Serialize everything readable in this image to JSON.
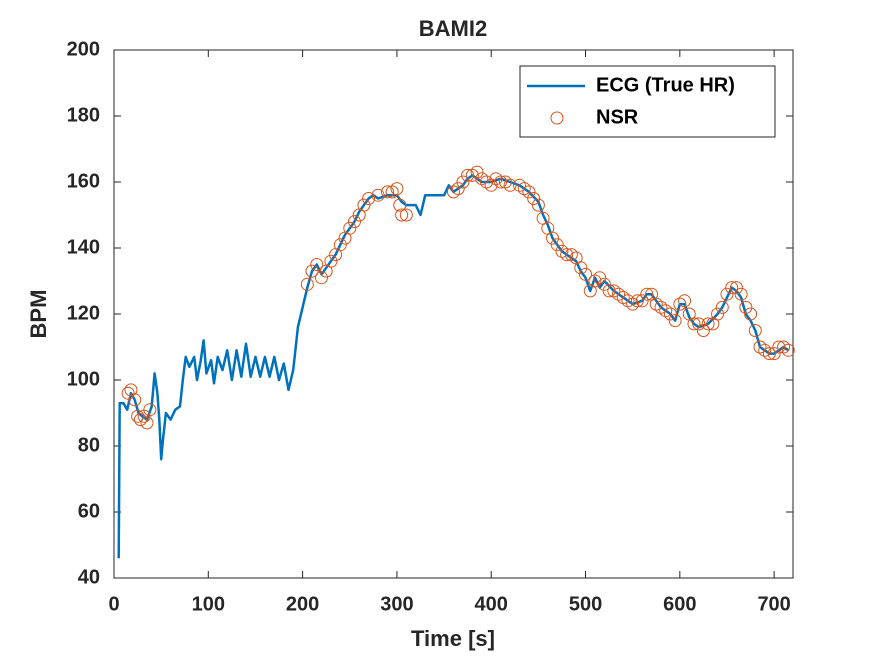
{
  "chart_data": {
    "type": "line",
    "title": "BAMI2",
    "xlabel": "Time [s]",
    "ylabel": "BPM",
    "xlim": [
      0,
      720
    ],
    "ylim": [
      40,
      200
    ],
    "xticks": [
      0,
      100,
      200,
      300,
      400,
      500,
      600,
      700
    ],
    "yticks": [
      40,
      60,
      80,
      100,
      120,
      140,
      160,
      180,
      200
    ],
    "grid": false,
    "legend_location": "northeast",
    "series": [
      {
        "name": "ECG (True HR)",
        "color": "#0072bd",
        "style": "line",
        "x": [
          5,
          6,
          10,
          14,
          18,
          22,
          26,
          30,
          35,
          40,
          43,
          46,
          48,
          50,
          52,
          55,
          60,
          65,
          70,
          73,
          76,
          80,
          85,
          88,
          92,
          95,
          98,
          103,
          106,
          110,
          115,
          120,
          125,
          130,
          135,
          140,
          145,
          150,
          155,
          160,
          165,
          170,
          175,
          180,
          185,
          190,
          195,
          200,
          205,
          210,
          215,
          220,
          225,
          230,
          235,
          240,
          245,
          250,
          255,
          260,
          265,
          270,
          275,
          280,
          290,
          300,
          305,
          310,
          320,
          325,
          330,
          340,
          350,
          355,
          360,
          370,
          375,
          380,
          385,
          390,
          400,
          410,
          420,
          430,
          440,
          450,
          455,
          460,
          465,
          470,
          475,
          480,
          490,
          495,
          500,
          505,
          510,
          515,
          520,
          530,
          540,
          550,
          560,
          565,
          570,
          580,
          590,
          595,
          600,
          605,
          610,
          615,
          620,
          630,
          640,
          645,
          650,
          655,
          660,
          665,
          670,
          675,
          680,
          685,
          690,
          695,
          700,
          705,
          710,
          715
        ],
        "values": [
          46,
          93,
          93,
          91,
          96,
          94,
          90,
          89,
          88,
          92,
          102,
          96,
          88,
          76,
          82,
          90,
          88,
          91,
          92,
          100,
          107,
          104,
          107,
          100,
          106,
          112,
          102,
          106,
          99,
          107,
          103,
          109,
          100,
          109,
          101,
          111,
          101,
          107,
          101,
          107,
          101,
          107,
          100,
          105,
          97,
          103,
          116,
          122,
          128,
          133,
          135,
          132,
          134,
          136,
          138,
          141,
          144,
          146,
          148,
          151,
          153,
          155,
          156,
          155,
          156,
          156,
          154,
          153,
          153,
          150,
          156,
          156,
          156,
          159,
          157,
          159,
          161,
          162,
          161,
          160,
          160,
          161,
          160,
          159,
          157,
          154,
          150,
          147,
          143,
          141,
          139,
          138,
          136,
          133,
          131,
          127,
          131,
          128,
          130,
          127,
          125,
          123,
          124,
          126,
          126,
          122,
          120,
          118,
          123,
          123,
          119,
          117,
          116,
          117,
          120,
          122,
          125,
          128,
          127,
          125,
          120,
          118,
          115,
          110,
          109,
          108,
          108,
          109,
          110,
          109
        ]
      },
      {
        "name": "NSR",
        "color": "#d95319",
        "style": "marker",
        "x": [
          15,
          18,
          22,
          25,
          28,
          32,
          35,
          38,
          205,
          210,
          215,
          220,
          225,
          230,
          235,
          240,
          245,
          250,
          255,
          260,
          265,
          270,
          280,
          290,
          295,
          300,
          303,
          305,
          310,
          360,
          365,
          370,
          375,
          380,
          385,
          390,
          395,
          400,
          405,
          410,
          415,
          420,
          430,
          435,
          440,
          445,
          450,
          455,
          460,
          465,
          470,
          475,
          480,
          485,
          490,
          495,
          500,
          505,
          510,
          515,
          520,
          525,
          530,
          535,
          540,
          545,
          550,
          555,
          560,
          565,
          570,
          575,
          580,
          585,
          590,
          595,
          600,
          605,
          610,
          615,
          620,
          625,
          630,
          635,
          640,
          645,
          650,
          655,
          660,
          665,
          670,
          675,
          680,
          685,
          690,
          695,
          700,
          705,
          710,
          715
        ],
        "values": [
          96,
          97,
          94,
          89,
          88,
          89,
          87,
          91,
          129,
          133,
          135,
          131,
          133,
          136,
          138,
          141,
          143,
          146,
          148,
          150,
          153,
          155,
          156,
          157,
          157,
          158,
          153,
          150,
          150,
          157,
          158,
          160,
          162,
          162,
          163,
          161,
          160,
          159,
          161,
          160,
          160,
          159,
          159,
          158,
          157,
          155,
          153,
          149,
          146,
          143,
          141,
          139,
          138,
          138,
          137,
          134,
          132,
          127,
          130,
          131,
          129,
          127,
          127,
          126,
          125,
          124,
          123,
          124,
          124,
          126,
          126,
          123,
          122,
          121,
          120,
          118,
          123,
          124,
          120,
          117,
          117,
          115,
          117,
          117,
          120,
          122,
          126,
          128,
          128,
          126,
          122,
          120,
          115,
          110,
          109,
          108,
          108,
          110,
          110,
          109
        ]
      }
    ]
  }
}
